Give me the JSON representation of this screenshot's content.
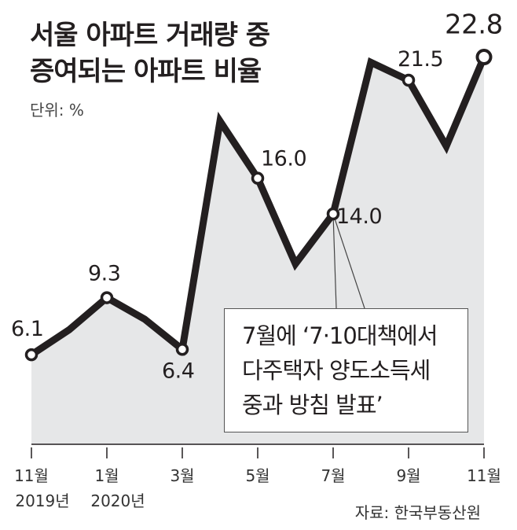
{
  "chart_data": {
    "type": "line",
    "title_lines": [
      "서울 아파트 거래량 중",
      "증여되는 아파트 비율"
    ],
    "unit": "단위: %",
    "source": "자료: 한국부동산원",
    "x": [
      "2019-11",
      "2019-12",
      "2020-01",
      "2020-02",
      "2020-03",
      "2020-04",
      "2020-05",
      "2020-06",
      "2020-07",
      "2020-08",
      "2020-09",
      "2020-10",
      "2020-11"
    ],
    "values": [
      6.1,
      7.5,
      9.3,
      8.1,
      6.4,
      19.2,
      16.0,
      11.2,
      14.0,
      22.5,
      21.5,
      17.8,
      22.8
    ],
    "labeled_points": [
      {
        "index": 0,
        "text": "6.1"
      },
      {
        "index": 2,
        "text": "9.3"
      },
      {
        "index": 4,
        "text": "6.4"
      },
      {
        "index": 6,
        "text": "16.0"
      },
      {
        "index": 8,
        "text": "14.0"
      },
      {
        "index": 10,
        "text": "21.5"
      },
      {
        "index": 12,
        "text": "22.8"
      }
    ],
    "x_ticks": [
      {
        "index": 0,
        "label": "11월",
        "year": "2019년"
      },
      {
        "index": 2,
        "label": "1월",
        "year": "2020년"
      },
      {
        "index": 4,
        "label": "3월",
        "year": ""
      },
      {
        "index": 6,
        "label": "5월",
        "year": ""
      },
      {
        "index": 8,
        "label": "7월",
        "year": ""
      },
      {
        "index": 10,
        "label": "9월",
        "year": ""
      },
      {
        "index": 12,
        "label": "11월",
        "year": ""
      }
    ],
    "annotation": {
      "target_index": 8,
      "lines": [
        "7월에 ‘7·10대책에서",
        "다주택자 양도소득세",
        "중과 방침 발표’"
      ]
    },
    "colors": {
      "line": "#231f20",
      "area": "#e6e7e8",
      "marker_fill": "#ffffff"
    }
  }
}
